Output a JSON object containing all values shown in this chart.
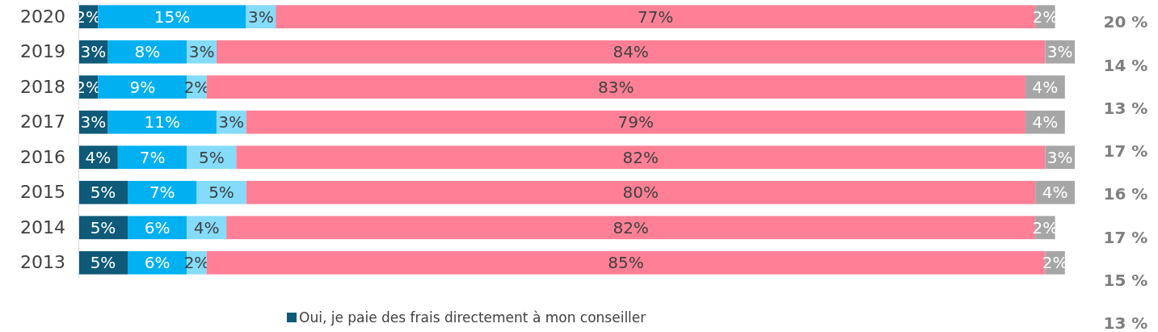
{
  "chart_data": {
    "type": "bar",
    "orientation": "horizontal",
    "stacked": true,
    "legend": "bottom",
    "grid": false,
    "categories": [
      "2020",
      "2019",
      "2018",
      "2017",
      "2016",
      "2015",
      "2014",
      "2013"
    ],
    "series": [
      {
        "name": "Oui, je paie des frais directement à mon conseiller",
        "color": "#0e5a78",
        "values": [
          2,
          3,
          2,
          3,
          4,
          5,
          5,
          5
        ],
        "value_labels": [
          "2%",
          "3%",
          "2%",
          "3%",
          "4%",
          "5%",
          "5%",
          "5%"
        ]
      },
      {
        "color": "#00b0f0",
        "values": [
          15,
          8,
          9,
          11,
          7,
          7,
          6,
          6
        ],
        "value_labels": [
          "15%",
          "8%",
          "9%",
          "11%",
          "7%",
          "7%",
          "6%",
          "6%"
        ]
      },
      {
        "color": "#85dbfa",
        "values": [
          3,
          3,
          2,
          3,
          5,
          5,
          4,
          2
        ],
        "value_labels": [
          "3%",
          "3%",
          "2%",
          "3%",
          "5%",
          "5%",
          "4%",
          "2%"
        ]
      },
      {
        "color": "#ff8096",
        "values": [
          77,
          84,
          83,
          79,
          82,
          80,
          82,
          85
        ],
        "value_labels": [
          "77%",
          "84%",
          "83%",
          "79%",
          "82%",
          "80%",
          "82%",
          "85%"
        ]
      },
      {
        "color": "#a6a6a6",
        "values": [
          2,
          3,
          4,
          4,
          3,
          4,
          2,
          2
        ],
        "value_labels": [
          "2%",
          "3%",
          "4%",
          "4%",
          "3%",
          "4%",
          "2%",
          "2%"
        ]
      }
    ],
    "annotations": [
      "20 %",
      "14 %",
      "13 %",
      "17 %",
      "16 %",
      "17 %",
      "15 %",
      "13 %"
    ]
  }
}
